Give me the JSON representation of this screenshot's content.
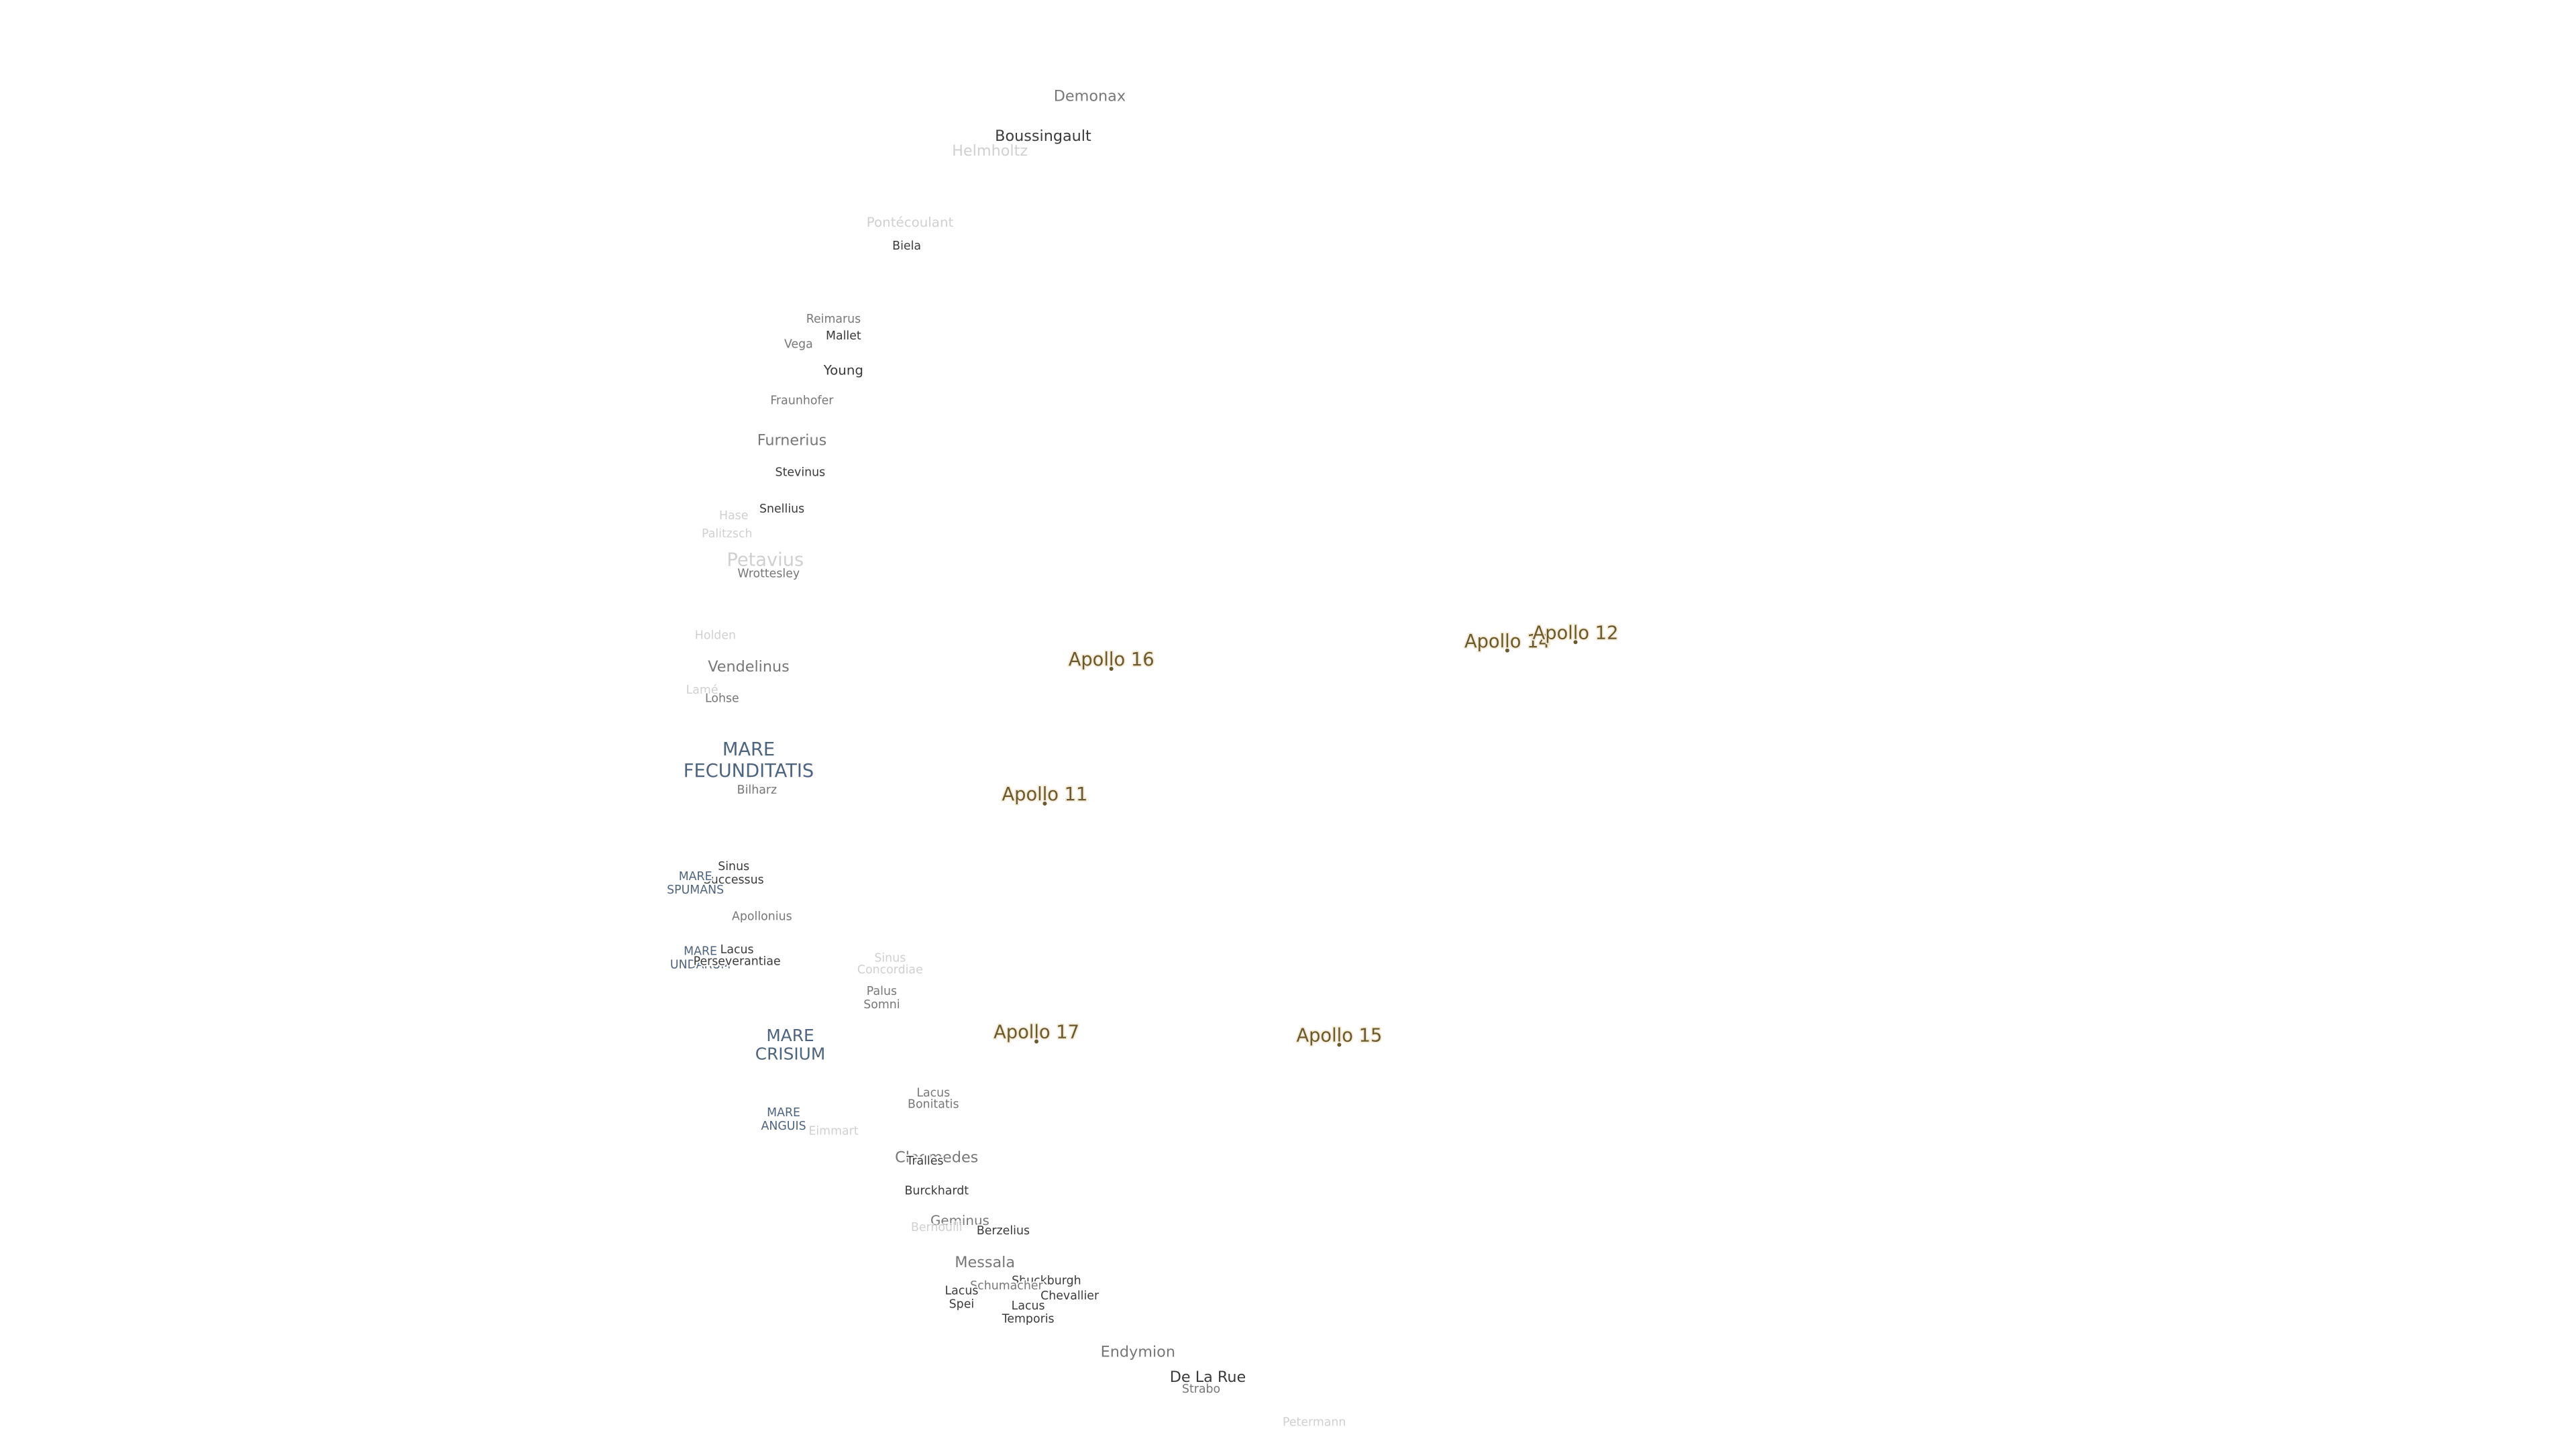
{
  "labels": [
    "Demonax",
    "Boussingault",
    "Helmholtz",
    "Pontécoulant",
    "Biela",
    "Reimarus",
    "Mallet",
    "Vega",
    "Young",
    "Fraunhofer",
    "Furnerius",
    "Stevinus",
    "Snellius",
    "Hase",
    "Palitzsch",
    "Petavius",
    "Wrottesley",
    "Holden",
    "Vendelinus",
    "Lamé",
    "Lohse",
    "Apollo 16",
    "Apollo 14",
    "Apollo 12",
    [
      "MARE",
      "FECUNDITATIS"
    ],
    "Bilharz",
    "Apollo 11",
    [
      "Sinus",
      "Successus"
    ],
    [
      "MARE",
      "SPUMANS"
    ],
    "Apollonius",
    [
      "MARE",
      "UNDARUM"
    ],
    [
      "Lacus",
      "Perseverantiae"
    ],
    [
      "Sinus",
      "Concordiae"
    ],
    [
      "Palus",
      "Somni"
    ],
    [
      "MARE",
      "CRISIUM"
    ],
    "Apollo 17",
    "Apollo 15",
    [
      "Lacus",
      "Bonitatis"
    ],
    [
      "MARE",
      "ANGUIS"
    ],
    "Eimmart",
    "Cleomedes",
    "Tralles",
    "Burckhardt",
    "Geminus",
    "Bernoulli",
    "Berzelius",
    "Messala",
    "Shuckburgh",
    "Schumacher",
    [
      "Lacus",
      "Spei"
    ],
    "Chevallier",
    [
      "Lacus",
      "Temporis"
    ],
    "Endymion",
    "De La Rue",
    "Strabo",
    "Petermann"
  ]
}
